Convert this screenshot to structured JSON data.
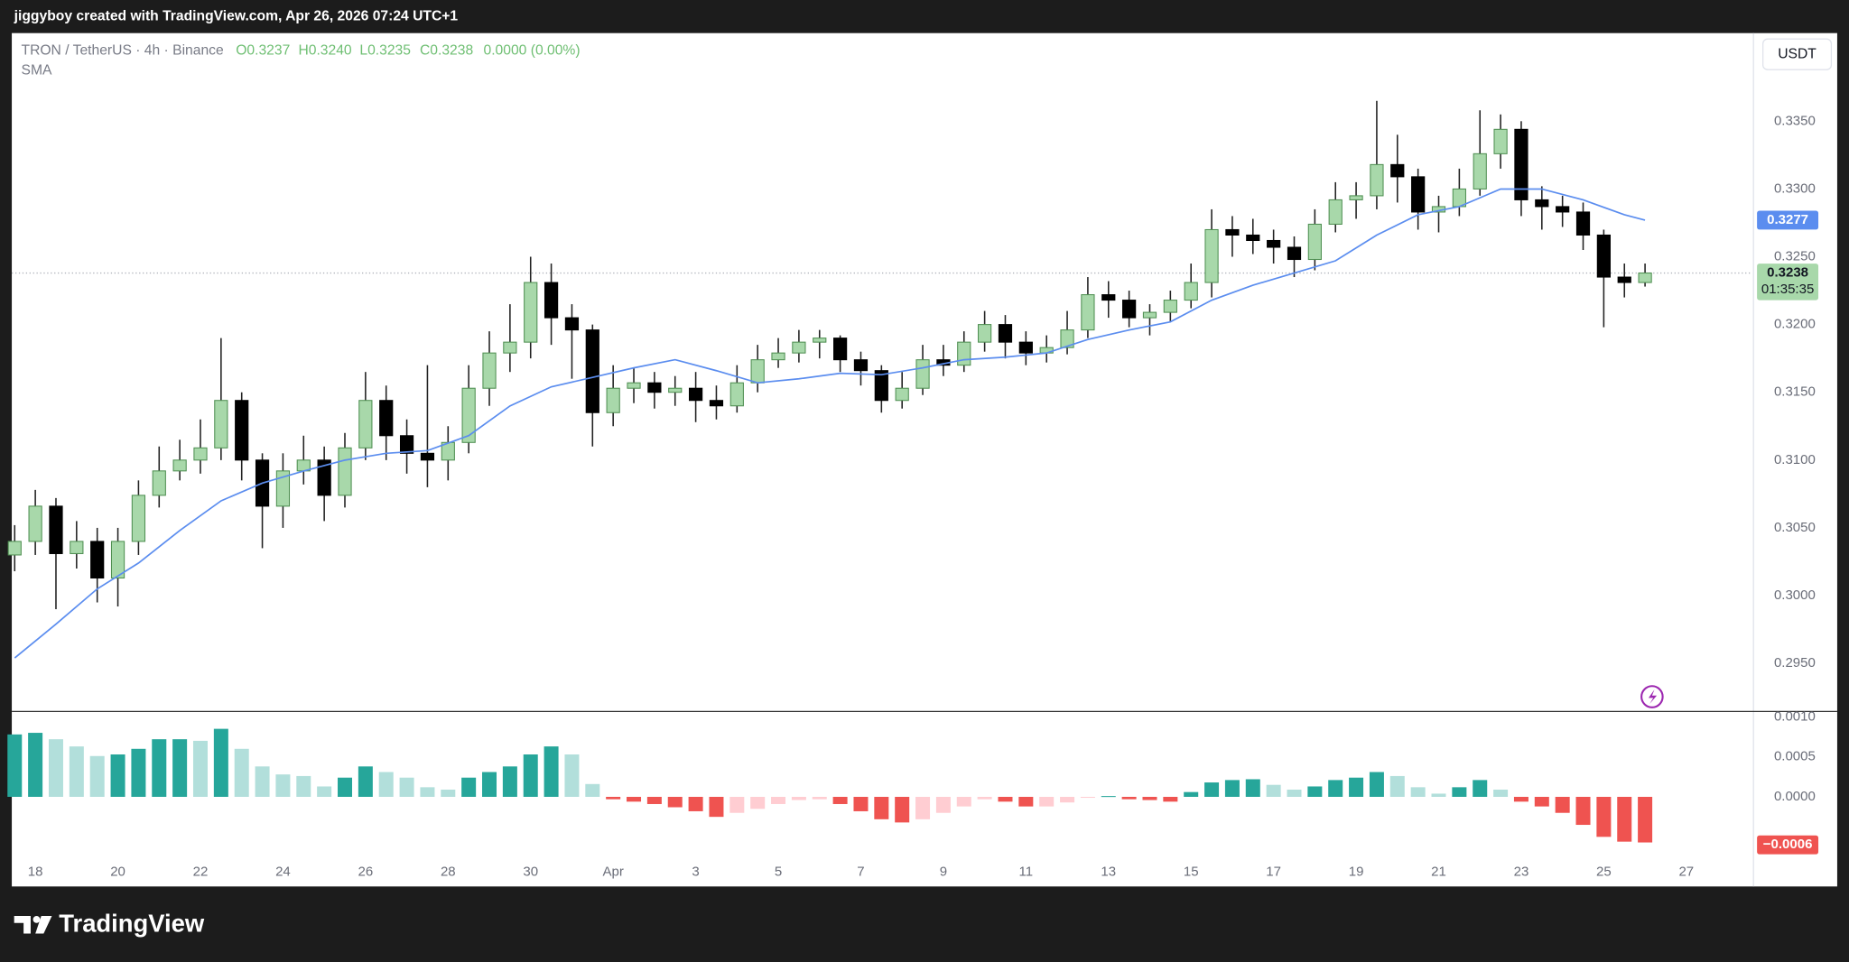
{
  "header": {
    "credit": "jiggyboy created with TradingView.com, Apr 26, 2026 07:24 UTC+1",
    "symbol": "TRON / TetherUS · 4h · Binance",
    "ohlc": [
      "O0.3237",
      "H0.3240",
      "L0.3235",
      "C0.3238",
      "0.0000 (0.00%)"
    ],
    "currency": "USDT"
  },
  "footer": {
    "brand": "TradingView"
  },
  "chart_data": [
    {
      "type": "candlestick",
      "x": [
        -0.5,
        0,
        0.5,
        1,
        1.5,
        2,
        2.5,
        3,
        3.5,
        4,
        4.5,
        5,
        5.5,
        6,
        6.5,
        7,
        7.5,
        8,
        8.5,
        9,
        9.5,
        10,
        10.5,
        11,
        11.5,
        12,
        12.5,
        13,
        13.5,
        14,
        14.5,
        15,
        15.5,
        16,
        16.5,
        17,
        17.5,
        18,
        18.5,
        19,
        19.5,
        20,
        20.5,
        21,
        21.5,
        22,
        22.5,
        23,
        23.5,
        24,
        24.5,
        25,
        25.5,
        26,
        26.5,
        27,
        27.5,
        28,
        28.5,
        29,
        29.5,
        30,
        30.5,
        31,
        31.5,
        32,
        32.5,
        33,
        33.5,
        34,
        34.5,
        35,
        35.5,
        36,
        36.5,
        37,
        37.5,
        38,
        38.5,
        39
      ],
      "open": [
        0.303,
        0.304,
        0.3066,
        0.3031,
        0.304,
        0.3013,
        0.304,
        0.3074,
        0.3092,
        0.31,
        0.3109,
        0.3144,
        0.31,
        0.3066,
        0.3092,
        0.31,
        0.3074,
        0.3109,
        0.3144,
        0.3118,
        0.3105,
        0.31,
        0.3113,
        0.3153,
        0.3179,
        0.3187,
        0.3231,
        0.3205,
        0.3196,
        0.3135,
        0.3153,
        0.3157,
        0.315,
        0.3153,
        0.3144,
        0.314,
        0.3157,
        0.3174,
        0.3179,
        0.3187,
        0.319,
        0.3174,
        0.3166,
        0.3144,
        0.3153,
        0.3174,
        0.317,
        0.3187,
        0.32,
        0.3187,
        0.3179,
        0.3183,
        0.3196,
        0.3222,
        0.3218,
        0.3205,
        0.3209,
        0.3218,
        0.3231,
        0.327,
        0.3266,
        0.3262,
        0.3257,
        0.3248,
        0.3274,
        0.3292,
        0.3295,
        0.3318,
        0.3309,
        0.3283,
        0.3287,
        0.33,
        0.3326,
        0.3344,
        0.3292,
        0.3287,
        0.3283,
        0.3266,
        0.3235,
        0.3231
      ],
      "high": [
        0.3052,
        0.3078,
        0.3072,
        0.3055,
        0.305,
        0.305,
        0.3085,
        0.311,
        0.3115,
        0.313,
        0.319,
        0.315,
        0.3105,
        0.3105,
        0.3118,
        0.311,
        0.312,
        0.3165,
        0.3155,
        0.313,
        0.317,
        0.3125,
        0.317,
        0.3195,
        0.3215,
        0.325,
        0.3245,
        0.3215,
        0.32,
        0.317,
        0.3168,
        0.3165,
        0.3162,
        0.3165,
        0.3155,
        0.317,
        0.3185,
        0.319,
        0.3196,
        0.3196,
        0.3192,
        0.318,
        0.317,
        0.3165,
        0.3185,
        0.3185,
        0.3195,
        0.321,
        0.3207,
        0.3195,
        0.3192,
        0.321,
        0.3235,
        0.3232,
        0.3225,
        0.3215,
        0.3225,
        0.3245,
        0.3285,
        0.328,
        0.3278,
        0.327,
        0.3265,
        0.3285,
        0.3305,
        0.3305,
        0.3365,
        0.334,
        0.3315,
        0.3295,
        0.3315,
        0.3358,
        0.3355,
        0.335,
        0.3302,
        0.3295,
        0.329,
        0.327,
        0.3245,
        0.3245
      ],
      "low": [
        0.3018,
        0.303,
        0.299,
        0.302,
        0.2995,
        0.2992,
        0.303,
        0.3065,
        0.3085,
        0.309,
        0.31,
        0.3085,
        0.3035,
        0.305,
        0.3082,
        0.3055,
        0.3065,
        0.31,
        0.31,
        0.309,
        0.308,
        0.3085,
        0.3105,
        0.314,
        0.3165,
        0.3175,
        0.3185,
        0.316,
        0.311,
        0.3125,
        0.3142,
        0.3138,
        0.314,
        0.3128,
        0.313,
        0.3135,
        0.315,
        0.3168,
        0.3172,
        0.3175,
        0.3165,
        0.3155,
        0.3135,
        0.3138,
        0.3148,
        0.3162,
        0.3165,
        0.318,
        0.3175,
        0.317,
        0.3172,
        0.3178,
        0.319,
        0.3205,
        0.3198,
        0.3192,
        0.3202,
        0.3212,
        0.322,
        0.325,
        0.3252,
        0.3245,
        0.3235,
        0.324,
        0.3268,
        0.3278,
        0.3285,
        0.329,
        0.327,
        0.3268,
        0.328,
        0.3295,
        0.3315,
        0.328,
        0.327,
        0.3272,
        0.3255,
        0.3198,
        0.322,
        0.3228
      ],
      "close": [
        0.304,
        0.3066,
        0.3031,
        0.304,
        0.3013,
        0.304,
        0.3074,
        0.3092,
        0.31,
        0.3109,
        0.3144,
        0.31,
        0.3066,
        0.3092,
        0.31,
        0.3074,
        0.3109,
        0.3144,
        0.3118,
        0.3105,
        0.31,
        0.3113,
        0.3153,
        0.3179,
        0.3187,
        0.3231,
        0.3205,
        0.3196,
        0.3135,
        0.3153,
        0.3157,
        0.315,
        0.3153,
        0.3144,
        0.314,
        0.3157,
        0.3174,
        0.3179,
        0.3187,
        0.319,
        0.3174,
        0.3166,
        0.3144,
        0.3153,
        0.3174,
        0.317,
        0.3187,
        0.32,
        0.3187,
        0.3179,
        0.3183,
        0.3196,
        0.3222,
        0.3218,
        0.3205,
        0.3209,
        0.3218,
        0.3231,
        0.327,
        0.3266,
        0.3262,
        0.3257,
        0.3248,
        0.3274,
        0.3292,
        0.3295,
        0.3318,
        0.3309,
        0.3283,
        0.3287,
        0.33,
        0.3326,
        0.3344,
        0.3292,
        0.3287,
        0.3283,
        0.3266,
        0.3235,
        0.3231,
        0.3238
      ],
      "up_color": "#a8d8aa",
      "up_border": "#4f8f52",
      "down_color": "#000000",
      "wick_color": "#222222",
      "lines": [
        {
          "name": "SMA",
          "color": "#5b8def",
          "x": [
            -0.5,
            0.5,
            1.5,
            2.5,
            3.5,
            4.5,
            5.5,
            6.5,
            7.5,
            8.5,
            9.5,
            10.5,
            11.5,
            12.5,
            13.5,
            14.5,
            15.5,
            16.5,
            17.5,
            18.5,
            19.5,
            20.5,
            21.5,
            22.5,
            23.5,
            24.5,
            25.5,
            26.5,
            27.5,
            28.5,
            29.5,
            30.5,
            31.5,
            32.5,
            33.5,
            34.5,
            35.5,
            36.5,
            37.5,
            38.5,
            39
          ],
          "values": [
            0.2954,
            0.2979,
            0.3005,
            0.3024,
            0.3048,
            0.307,
            0.3083,
            0.3092,
            0.31,
            0.3105,
            0.3107,
            0.3118,
            0.314,
            0.3154,
            0.3161,
            0.3168,
            0.3174,
            0.3166,
            0.3157,
            0.316,
            0.3164,
            0.3163,
            0.3168,
            0.3174,
            0.3176,
            0.3179,
            0.3189,
            0.3196,
            0.3202,
            0.3218,
            0.3229,
            0.3238,
            0.3247,
            0.3266,
            0.3281,
            0.3287,
            0.33,
            0.33,
            0.3292,
            0.3281,
            0.3277
          ],
          "last_label": {
            "value": 0.3277,
            "label": "0.3277"
          }
        }
      ],
      "last_price": {
        "value": 0.3238,
        "label": "0.3238",
        "countdown": "01:35:35",
        "color": "#a8d8aa"
      },
      "xlim": [
        -0.57,
        41.57
      ],
      "xticks": [
        {
          "value": 0,
          "label": "18"
        },
        {
          "value": 2,
          "label": "20"
        },
        {
          "value": 4,
          "label": "22"
        },
        {
          "value": 6,
          "label": "24"
        },
        {
          "value": 8,
          "label": "26"
        },
        {
          "value": 10,
          "label": "28"
        },
        {
          "value": 12,
          "label": "30"
        },
        {
          "value": 14,
          "label": "Apr"
        },
        {
          "value": 16,
          "label": "3"
        },
        {
          "value": 18,
          "label": "5"
        },
        {
          "value": 20,
          "label": "7"
        },
        {
          "value": 22,
          "label": "9"
        },
        {
          "value": 24,
          "label": "11"
        },
        {
          "value": 26,
          "label": "13"
        },
        {
          "value": 28,
          "label": "15"
        },
        {
          "value": 30,
          "label": "17"
        },
        {
          "value": 32,
          "label": "19"
        },
        {
          "value": 34,
          "label": "21"
        },
        {
          "value": 36,
          "label": "23"
        },
        {
          "value": 38,
          "label": "25"
        },
        {
          "value": 40,
          "label": "27"
        }
      ],
      "ylim": [
        0.2915,
        0.3415
      ],
      "yticks": [
        {
          "value": 0.295,
          "label": "0.2950"
        },
        {
          "value": 0.3,
          "label": "0.3000"
        },
        {
          "value": 0.305,
          "label": "0.3050"
        },
        {
          "value": 0.31,
          "label": "0.3100"
        },
        {
          "value": 0.315,
          "label": "0.3150"
        },
        {
          "value": 0.32,
          "label": "0.3200"
        },
        {
          "value": 0.325,
          "label": "0.3250"
        },
        {
          "value": 0.33,
          "label": "0.3300"
        },
        {
          "value": 0.335,
          "label": "0.3350"
        }
      ],
      "grid": false
    },
    {
      "type": "bar",
      "x": [
        -0.5,
        0,
        0.5,
        1,
        1.5,
        2,
        2.5,
        3,
        3.5,
        4,
        4.5,
        5,
        5.5,
        6,
        6.5,
        7,
        7.5,
        8,
        8.5,
        9,
        9.5,
        10,
        10.5,
        11,
        11.5,
        12,
        12.5,
        13,
        13.5,
        14,
        14.5,
        15,
        15.5,
        16,
        16.5,
        17,
        17.5,
        18,
        18.5,
        19,
        19.5,
        20,
        20.5,
        21,
        21.5,
        22,
        22.5,
        23,
        23.5,
        24,
        24.5,
        25,
        25.5,
        26,
        26.5,
        27,
        27.5,
        28,
        28.5,
        29,
        29.5,
        30,
        30.5,
        31,
        31.5,
        32,
        32.5,
        33,
        33.5,
        34,
        34.5,
        35,
        35.5,
        36,
        36.5,
        37,
        37.5,
        38,
        38.5,
        39
      ],
      "values": [
        0.00078,
        0.0008,
        0.00072,
        0.00063,
        0.00051,
        0.00053,
        0.0006,
        0.00072,
        0.00072,
        0.0007,
        0.00085,
        0.0006,
        0.00038,
        0.00028,
        0.00026,
        0.00013,
        0.00024,
        0.00038,
        0.00031,
        0.00024,
        0.00012,
        9e-05,
        0.00024,
        0.00031,
        0.00038,
        0.00053,
        0.00063,
        0.00053,
        0.00016,
        -3e-05,
        -6e-05,
        -9e-05,
        -0.00013,
        -0.00018,
        -0.00025,
        -0.0002,
        -0.00015,
        -9e-05,
        -4e-05,
        -3e-05,
        -9e-05,
        -0.00018,
        -0.00028,
        -0.00032,
        -0.00028,
        -0.0002,
        -0.00012,
        -3e-05,
        -6e-05,
        -0.00012,
        -0.00012,
        -7e-05,
        -1e-05,
        1e-05,
        -3e-05,
        -4e-05,
        -6e-05,
        6e-05,
        0.00018,
        0.00021,
        0.00022,
        0.00015,
        9e-05,
        0.00013,
        0.00021,
        0.00024,
        0.00031,
        0.00026,
        0.00012,
        4e-05,
        0.00012,
        0.00021,
        9e-05,
        -6e-05,
        -0.00012,
        -0.0002,
        -0.00035,
        -0.0005,
        -0.00056,
        -0.00057
      ],
      "colors": [
        "#26a69a",
        "#b2dfdb",
        "#ffcdd2",
        "#ef5350"
      ],
      "last_label": {
        "value": -0.0006,
        "label": "−0.0006",
        "color": "#ef5350"
      },
      "ylim": [
        -0.00112,
        0.00106
      ],
      "yticks": [
        {
          "value": 0.001,
          "label": "0.0010"
        },
        {
          "value": 0.0005,
          "label": "0.0005"
        },
        {
          "value": 0,
          "label": "0.0000"
        }
      ]
    }
  ]
}
